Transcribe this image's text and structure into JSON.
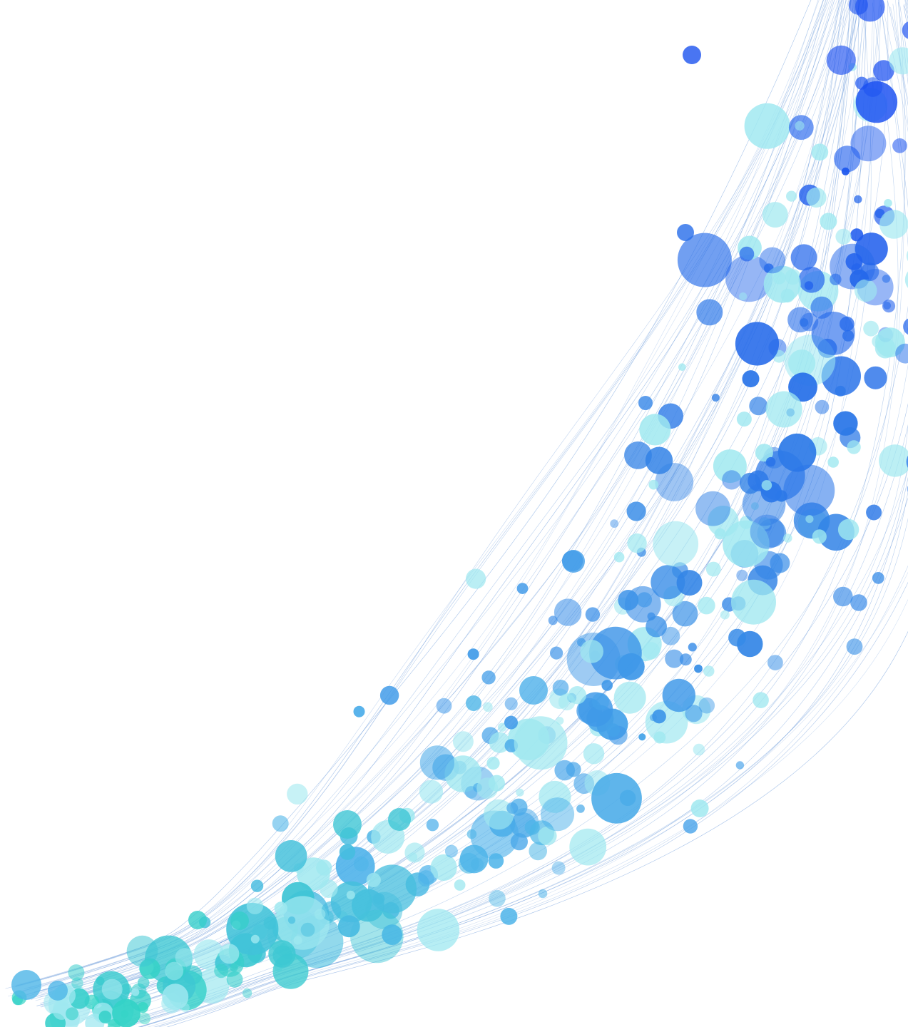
{
  "image": {
    "background_color": "#ffffff",
    "palette": {
      "deep_blue": "#1a4ff0",
      "mid_blue": "#2f7fe6",
      "sky_blue": "#4fb3ea",
      "teal": "#2fd6c2",
      "aqua_light": "#9fe8f0",
      "line_color": "#5b8fd6"
    }
  }
}
